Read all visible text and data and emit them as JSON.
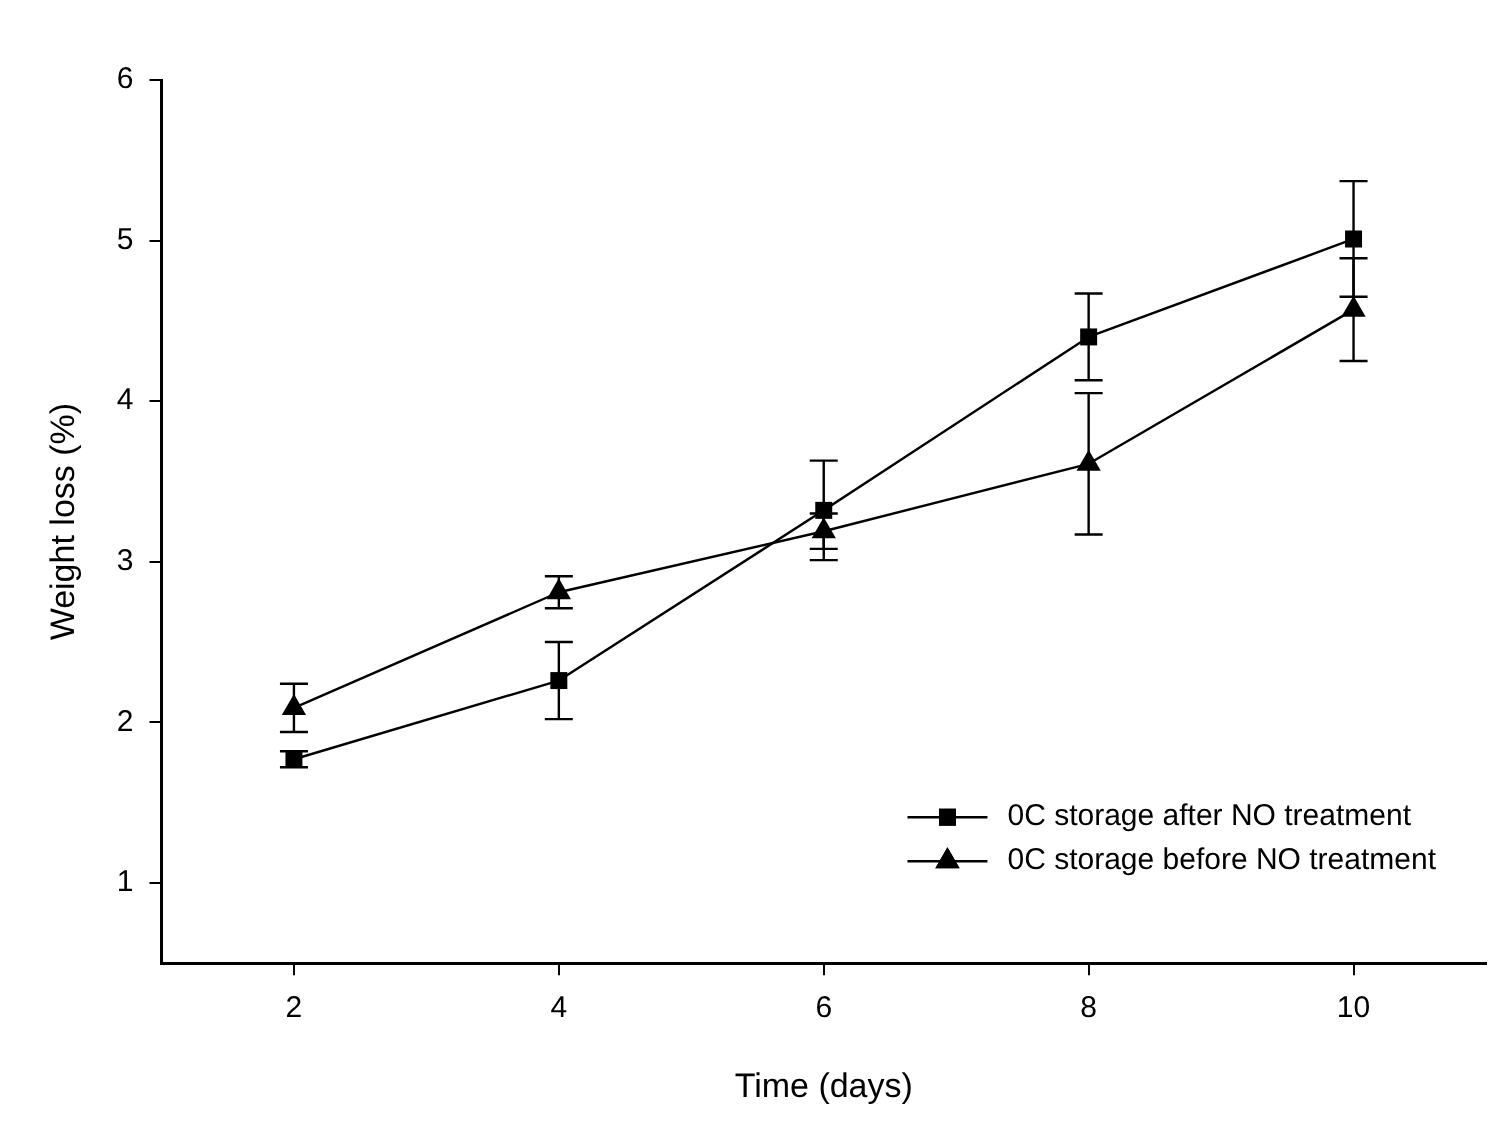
{
  "chart_data": {
    "type": "line",
    "xlabel": "Time (days)",
    "ylabel": "Weight loss (%)",
    "xlim": [
      1,
      11
    ],
    "xticks": [
      2,
      4,
      6,
      8,
      10
    ],
    "ylim": [
      0.5,
      6
    ],
    "yticks": [
      1,
      2,
      3,
      4,
      5,
      6
    ],
    "grid": false,
    "legend": "bottom right",
    "line_style": "solid",
    "x": [
      2,
      4,
      6,
      8,
      10
    ],
    "series": [
      {
        "name": "0C storage after NO treatment",
        "color": "#000000",
        "marker": "square",
        "values": [
          1.77,
          2.26,
          3.32,
          4.4,
          5.01
        ],
        "errors": [
          0.05,
          0.24,
          0.31,
          0.27,
          0.36
        ]
      },
      {
        "name": "0C storage before NO treatment",
        "color": "#000000",
        "marker": "triangle",
        "values": [
          2.09,
          2.81,
          3.19,
          3.61,
          4.57
        ],
        "errors": [
          0.15,
          0.1,
          0.11,
          0.44,
          0.32
        ]
      }
    ]
  }
}
